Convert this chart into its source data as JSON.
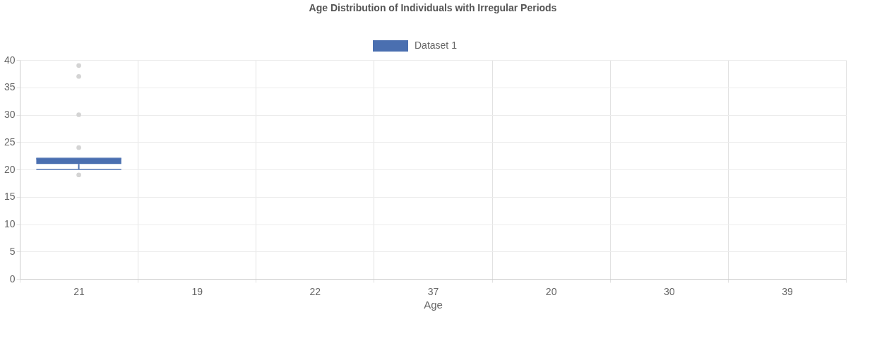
{
  "chart_data": {
    "type": "box",
    "title": "Age Distribution of Individuals with Irregular Periods",
    "xlabel": "Age",
    "categories": [
      "21",
      "19",
      "22",
      "37",
      "20",
      "30",
      "39"
    ],
    "series": [
      {
        "name": "Dataset 1",
        "color": "#4a6fb0",
        "boxes": [
          {
            "low": 20,
            "q1": 21,
            "median": 22,
            "q3": 22,
            "high": 22,
            "outliers": [
              19,
              24,
              30,
              37,
              39
            ]
          },
          null,
          null,
          null,
          null,
          null,
          null
        ]
      }
    ],
    "ylim": [
      0,
      40
    ],
    "yticks": [
      0,
      5,
      10,
      15,
      20,
      25,
      30,
      35,
      40
    ],
    "grid": true,
    "legend": "top"
  }
}
